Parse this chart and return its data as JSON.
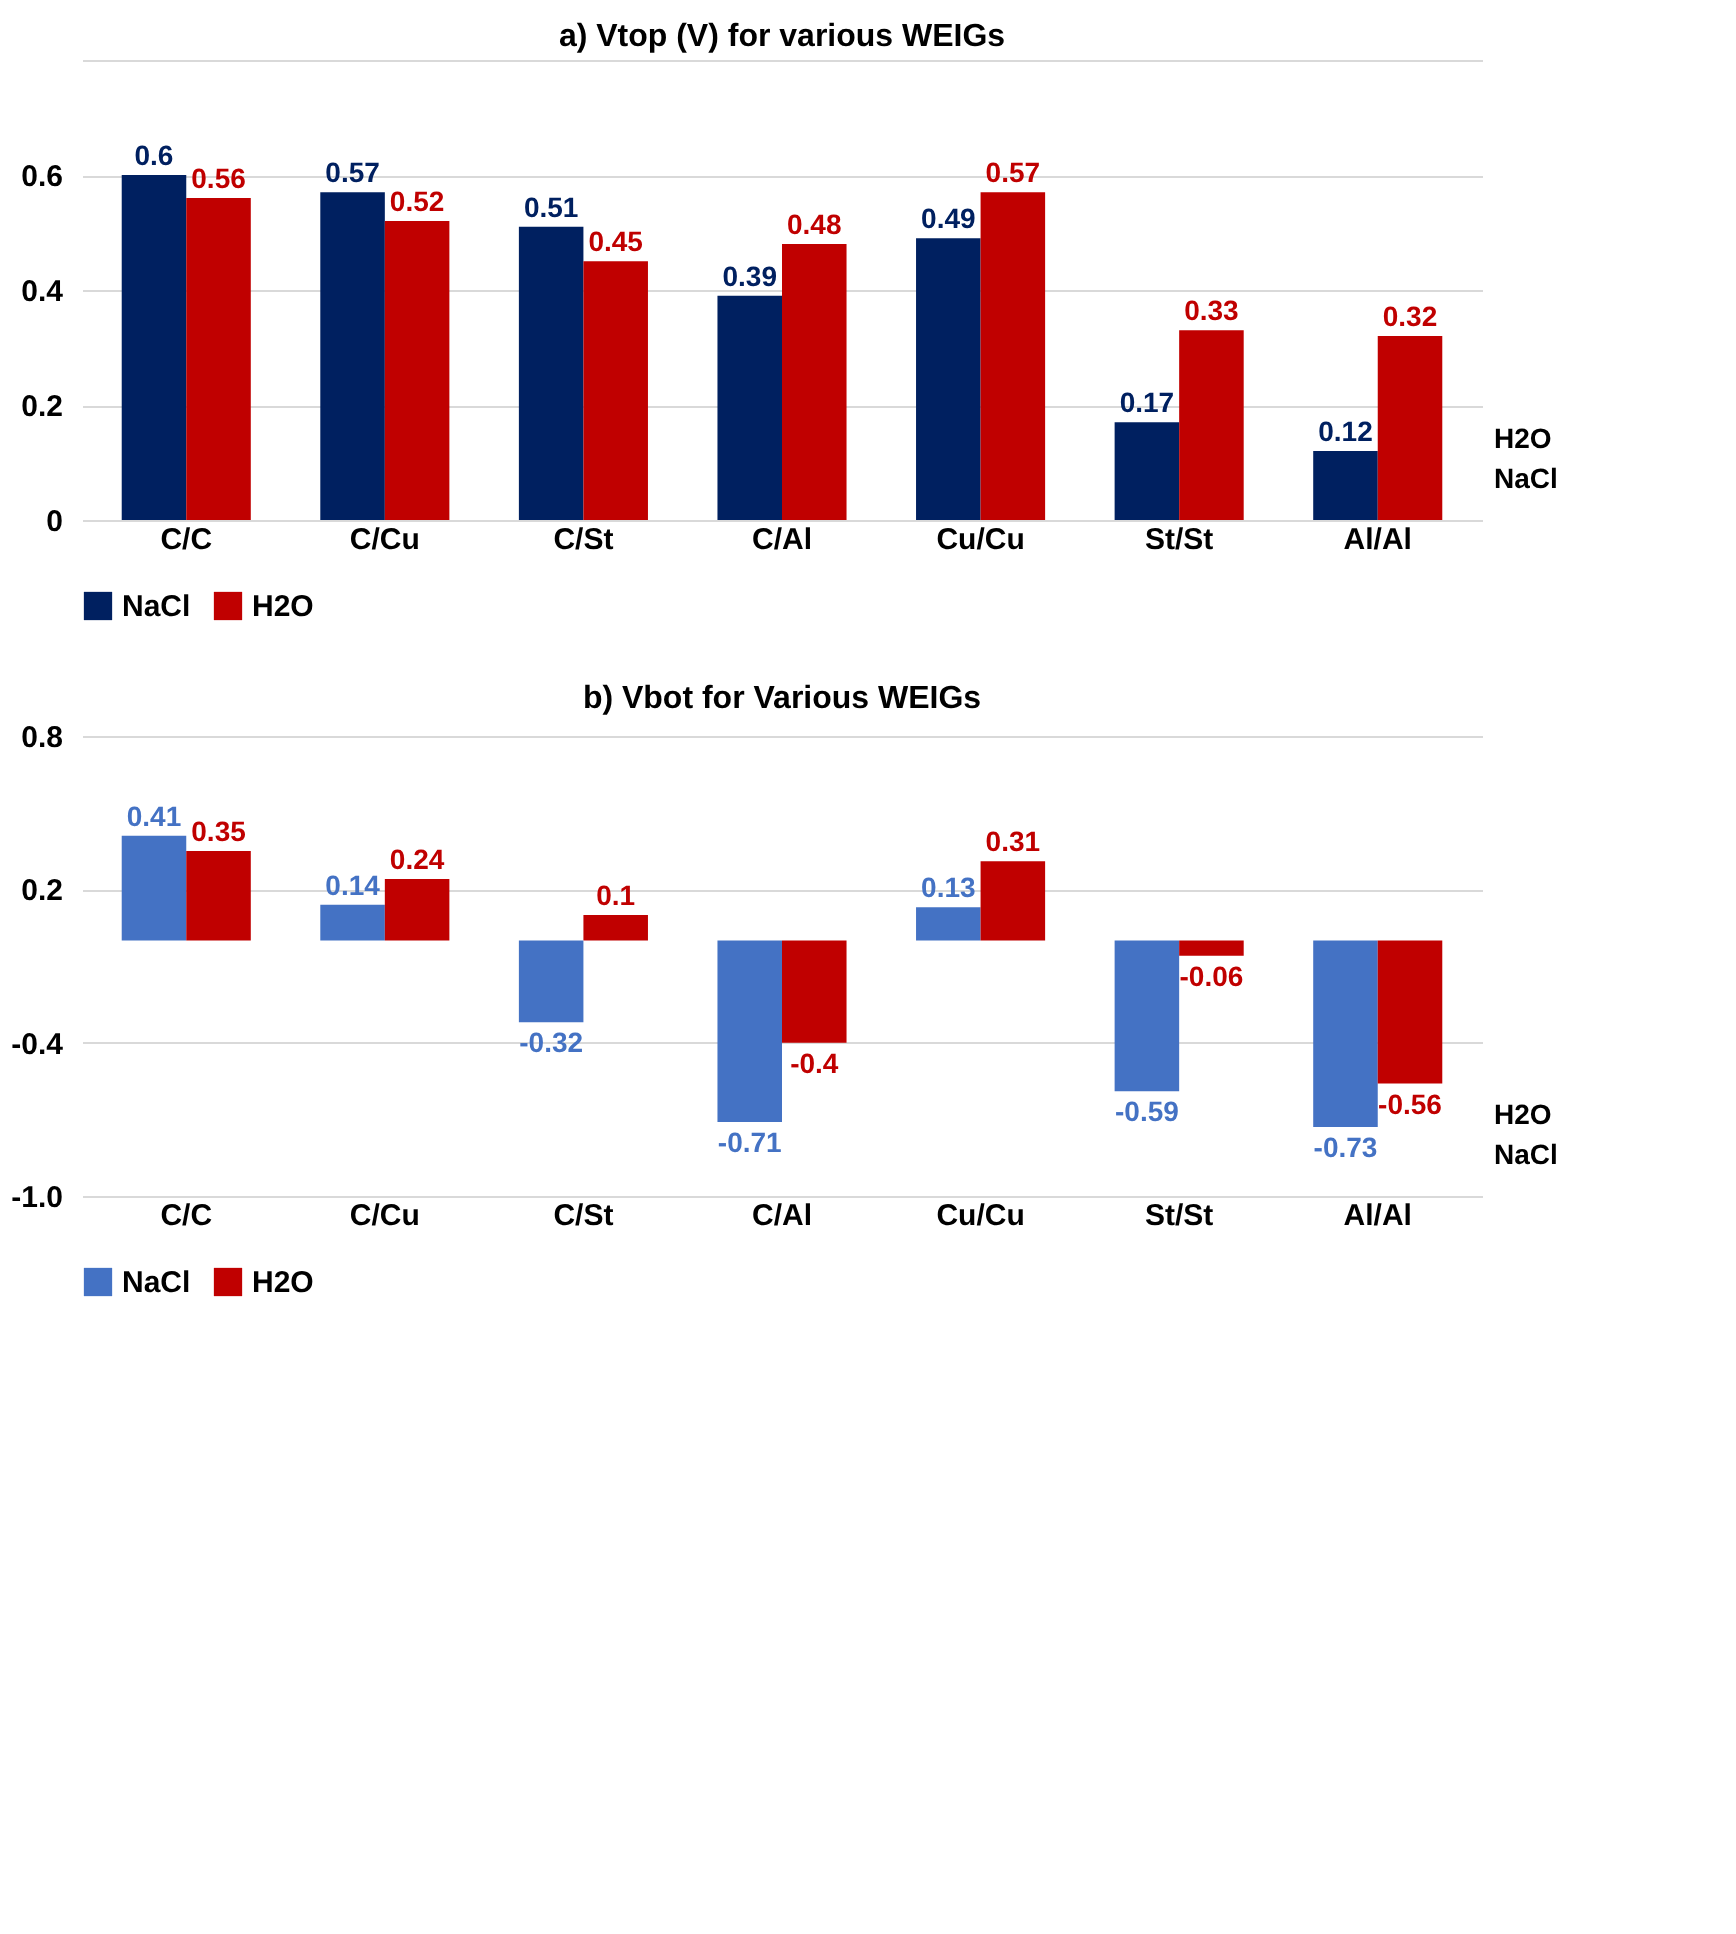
{
  "chart_data": [
    {
      "type": "bar",
      "title": "a) Vtop (V) for various WEIGs",
      "categories": [
        "C/C",
        "C/Cu",
        "C/St",
        "C/Al",
        "Cu/Cu",
        "St/St",
        "Al/Al"
      ],
      "series": [
        {
          "name": "NaCl",
          "color": "#002060",
          "values": [
            0.6,
            0.57,
            0.51,
            0.39,
            0.49,
            0.17,
            0.12
          ]
        },
        {
          "name": "H2O",
          "color": "#c00000",
          "values": [
            0.56,
            0.52,
            0.45,
            0.48,
            0.57,
            0.33,
            0.32
          ]
        }
      ],
      "ylim": [
        0,
        0.8
      ],
      "yticks": [
        0,
        0.2,
        0.4,
        0.6,
        {
          "value": 0.8,
          "label": null
        }
      ],
      "grid": "y",
      "data_labels": true,
      "legend": "bottom",
      "annotations": [
        "H2O",
        "NaCl"
      ]
    },
    {
      "type": "bar",
      "title": "b) Vbot for Various WEIGs",
      "categories": [
        "C/C",
        "C/Cu",
        "C/St",
        "C/Al",
        "Cu/Cu",
        "St/St",
        "Al/Al"
      ],
      "series": [
        {
          "name": "NaCl",
          "color": "#4472c4",
          "values": [
            0.41,
            0.14,
            -0.32,
            -0.71,
            0.13,
            -0.59,
            -0.73
          ]
        },
        {
          "name": "H2O",
          "color": "#c00000",
          "values": [
            0.35,
            0.24,
            0.1,
            -0.4,
            0.31,
            -0.06,
            -0.56
          ]
        }
      ],
      "ylim": [
        -1.0,
        0.8
      ],
      "yticks": [
        {
          "value": -1.0,
          "label": "-1.0"
        },
        -0.4,
        0.2,
        0.8
      ],
      "grid": "y",
      "data_labels": true,
      "legend": "bottom",
      "annotations": [
        "H2O",
        "NaCl"
      ]
    }
  ]
}
